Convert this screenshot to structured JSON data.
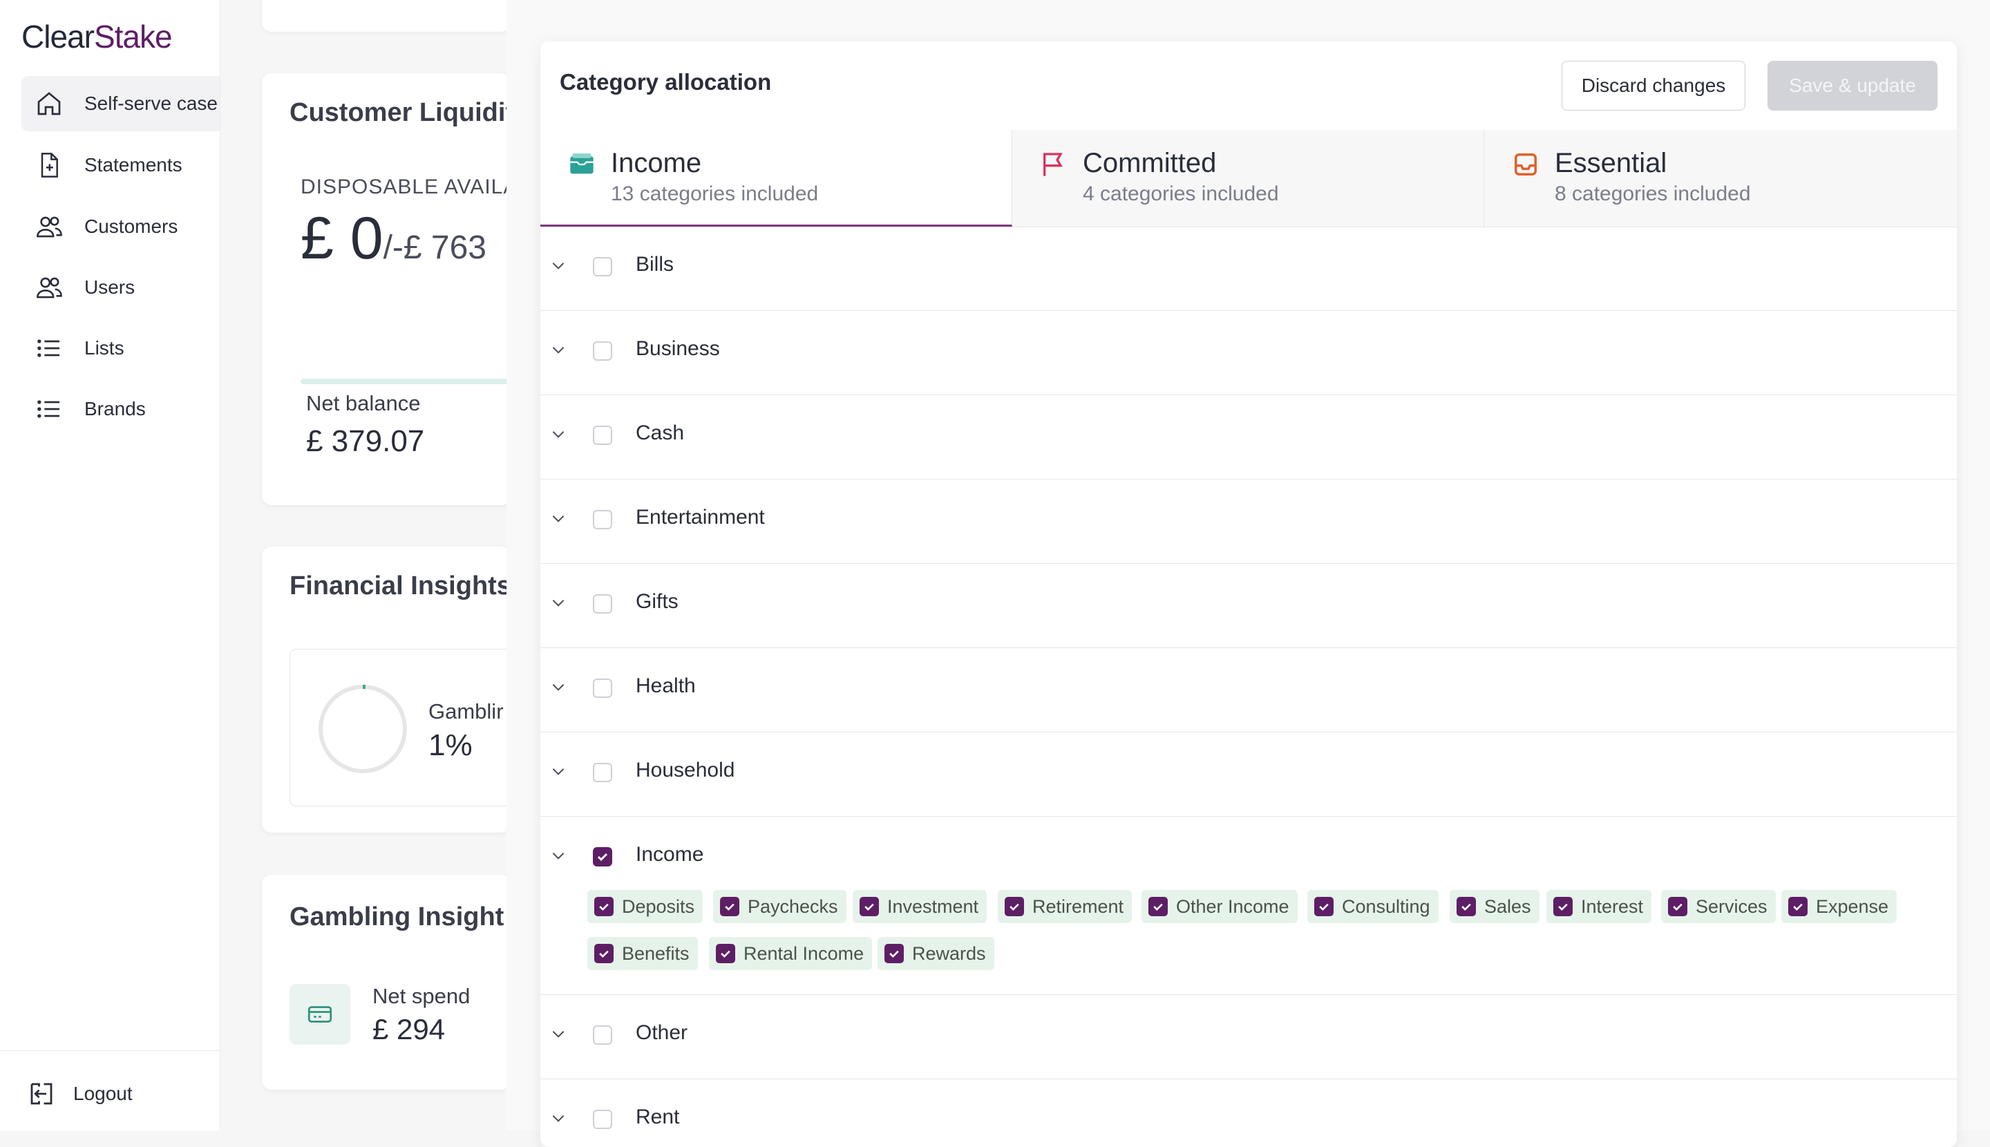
{
  "app": {
    "logo_part1": "Clear",
    "logo_part2": "Stake"
  },
  "sidebar": {
    "items": [
      {
        "label": "Self-serve case",
        "icon": "home-icon",
        "active": true
      },
      {
        "label": "Statements",
        "icon": "file-plus-icon",
        "active": false
      },
      {
        "label": "Customers",
        "icon": "users-icon",
        "active": false
      },
      {
        "label": "Users",
        "icon": "users-icon",
        "active": false
      },
      {
        "label": "Lists",
        "icon": "list-icon",
        "active": false
      },
      {
        "label": "Brands",
        "icon": "list-icon",
        "active": false
      }
    ],
    "logout_label": "Logout"
  },
  "background": {
    "liquidity_title": "Customer Liquidit",
    "disposable_label": "DISPOSABLE AVAILAI",
    "disposable_amount": "£ 0",
    "disposable_sub": "/-£ 763",
    "net_balance_label": "Net balance",
    "net_balance_value": "£ 379.07",
    "financial_title": "Financial Insights",
    "gambling_label": "Gamblir",
    "gambling_value": "1%",
    "gambling_insights_title": "Gambling Insight",
    "net_spend_label": "Net spend",
    "net_spend_value": "£ 294"
  },
  "modal": {
    "title": "Category allocation",
    "discard_label": "Discard changes",
    "save_label": "Save & update",
    "tabs": [
      {
        "name": "Income",
        "sub": "13 categories included",
        "icon": "wallet-icon",
        "color": "#2aa198"
      },
      {
        "name": "Committed",
        "sub": "4 categories included",
        "icon": "flag-icon",
        "color": "#d6365c"
      },
      {
        "name": "Essential",
        "sub": "8 categories included",
        "icon": "inbox-icon",
        "color": "#e0602a"
      }
    ],
    "rows": [
      {
        "label": "Bills",
        "checked": false
      },
      {
        "label": "Business",
        "checked": false
      },
      {
        "label": "Cash",
        "checked": false
      },
      {
        "label": "Entertainment",
        "checked": false
      },
      {
        "label": "Gifts",
        "checked": false
      },
      {
        "label": "Health",
        "checked": false
      },
      {
        "label": "Household",
        "checked": false
      },
      {
        "label": "Income",
        "checked": true
      },
      {
        "label": "Other",
        "checked": false
      },
      {
        "label": "Rent",
        "checked": false
      }
    ],
    "income_subcategories": [
      "Deposits",
      "Paychecks",
      "Investment",
      "Retirement",
      "Other Income",
      "Consulting",
      "Sales",
      "Interest",
      "Services",
      "Expense",
      "Benefits",
      "Rental Income",
      "Rewards"
    ]
  },
  "colors": {
    "brand": "#5e1e66",
    "chip_bg": "#e6f3ea",
    "tab_active_border": "#7a3a7e"
  }
}
